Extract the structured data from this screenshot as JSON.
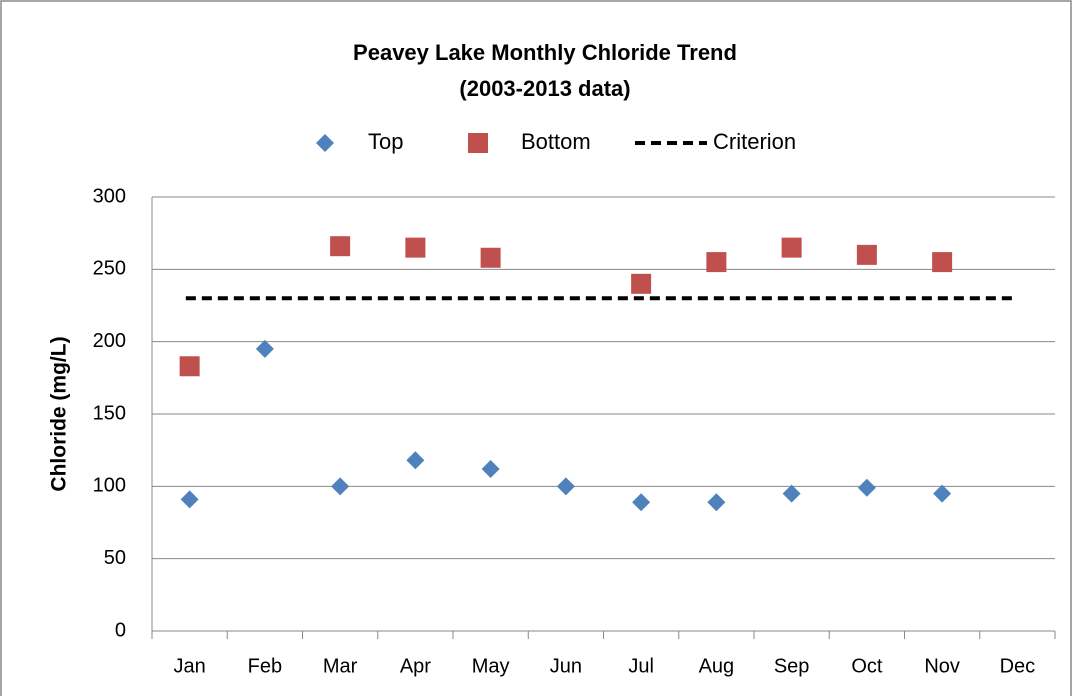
{
  "chart_data": {
    "type": "scatter",
    "title": "Peavey Lake Monthly Chloride Trend",
    "subtitle": "(2003-2013 data)",
    "y_label": "Chloride (mg/L)",
    "categories": [
      "Jan",
      "Feb",
      "Mar",
      "Apr",
      "May",
      "Jun",
      "Jul",
      "Aug",
      "Sep",
      "Oct",
      "Nov",
      "Dec"
    ],
    "series": [
      {
        "name": "Top",
        "color": "#4f81bd",
        "marker": "diamond",
        "values": [
          91,
          195,
          100,
          118,
          112,
          100,
          89,
          89,
          95,
          99,
          95,
          null
        ]
      },
      {
        "name": "Bottom",
        "color": "#c0504d",
        "marker": "square",
        "values": [
          183,
          null,
          266,
          265,
          258,
          null,
          240,
          255,
          265,
          260,
          255,
          null
        ]
      },
      {
        "name": "Criterion",
        "color": "#000000",
        "marker": "dashed-line",
        "values": [
          230,
          230,
          230,
          230,
          230,
          230,
          230,
          230,
          230,
          230,
          230,
          230
        ]
      }
    ],
    "ylim": [
      0,
      300
    ],
    "yticks": [
      0,
      50,
      100,
      150,
      200,
      250,
      300
    ],
    "grid": true,
    "legend": "top"
  }
}
